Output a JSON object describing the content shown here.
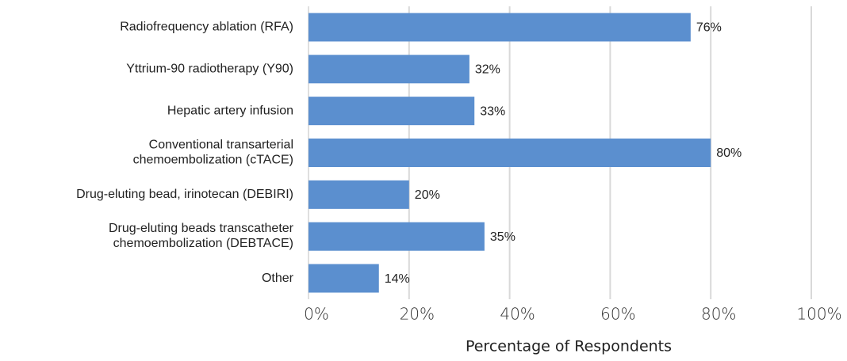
{
  "chart_data": {
    "type": "barh",
    "x_label": "Percentage of Respondents",
    "categories": [
      "Radiofrequency ablation (RFA)",
      "Yttrium-90 radiotherapy (Y90)",
      "Hepatic artery infusion",
      "Conventional transarterial\nchemoembolization (cTACE)",
      "Drug-eluting bead, irinotecan (DEBIRI)",
      "Drug-eluting beads transcatheter\nchemoembolization (DEBTACE)",
      "Other"
    ],
    "values": [
      76,
      32,
      33,
      80,
      20,
      35,
      14
    ],
    "value_labels": [
      "76%",
      "32%",
      "33%",
      "80%",
      "20%",
      "35%",
      "14%"
    ],
    "color": "#5b8fcf",
    "xlim": [
      0,
      100
    ],
    "xticks": [
      {
        "value": 0,
        "label": "0%"
      },
      {
        "value": 20,
        "label": "20%"
      },
      {
        "value": 40,
        "label": "40%"
      },
      {
        "value": 60,
        "label": "60%"
      },
      {
        "value": 80,
        "label": "80%"
      },
      {
        "value": 100,
        "label": "100%"
      }
    ],
    "grid": true
  }
}
